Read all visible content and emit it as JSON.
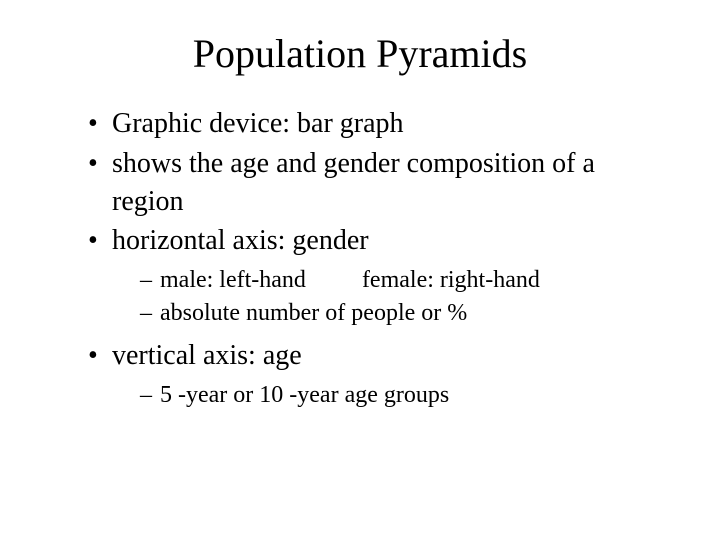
{
  "slide": {
    "title": "Population Pyramids",
    "bullets": {
      "b1": "Graphic device: bar graph",
      "b2": "shows the age and gender composition of a region",
      "b3": "horizontal axis: gender",
      "b3_sub": {
        "s1a": "male: left-hand",
        "s1b": "female: right-hand",
        "s2": "absolute number of people or %"
      },
      "b4": "vertical axis: age",
      "b4_sub": {
        "s1": "5 -year or 10 -year age groups"
      }
    }
  },
  "style": {
    "background_color": "#ffffff",
    "text_color": "#000000",
    "font_family": "Times New Roman",
    "title_fontsize": 40,
    "body_fontsize": 28,
    "sub_fontsize": 24,
    "bullet_glyph": "•",
    "dash_glyph": "–"
  }
}
